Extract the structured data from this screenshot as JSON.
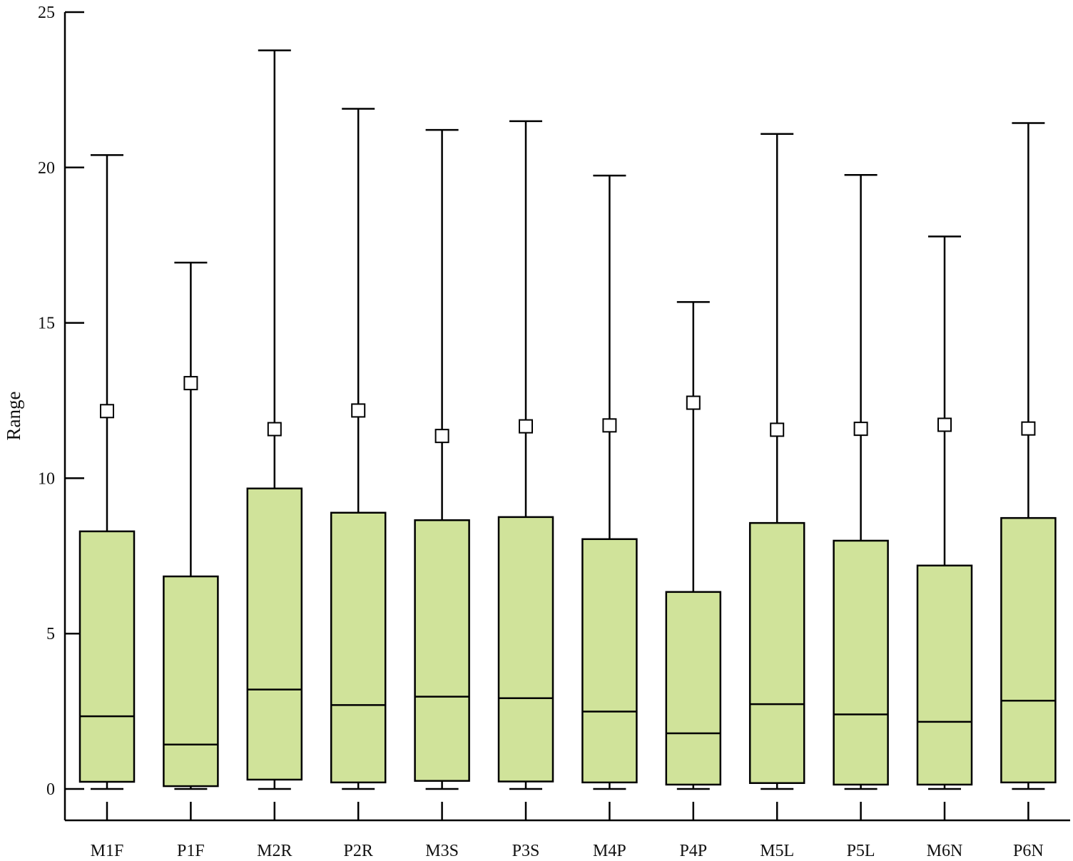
{
  "chart_data": {
    "type": "boxplot",
    "ylabel": "Range",
    "xlabel": "",
    "ylim": [
      0,
      25
    ],
    "yticks": [
      0,
      5,
      10,
      15,
      20,
      25
    ],
    "ytick_labels": [
      "0",
      "5",
      "10",
      "15",
      "20",
      "25"
    ],
    "grid": false,
    "legend": "none",
    "box_color": "#d0e39a",
    "line_color": "#000000",
    "categories": [
      "M1F",
      "P1F",
      "M2R",
      "P2R",
      "M3S",
      "P3S",
      "M4P",
      "P4P",
      "M5L",
      "P5L",
      "M6N",
      "P6N"
    ],
    "boxes": [
      {
        "label": "M1F",
        "min": 0.0,
        "q1": 0.23,
        "median": 2.34,
        "q3": 8.29,
        "max": 20.4,
        "mean": 12.16
      },
      {
        "label": "P1F",
        "min": 0.0,
        "q1": 0.09,
        "median": 1.43,
        "q3": 6.84,
        "max": 16.94,
        "mean": 13.06
      },
      {
        "label": "M2R",
        "min": 0.0,
        "q1": 0.3,
        "median": 3.2,
        "q3": 9.67,
        "max": 23.77,
        "mean": 11.58
      },
      {
        "label": "P2R",
        "min": 0.0,
        "q1": 0.21,
        "median": 2.7,
        "q3": 8.89,
        "max": 21.89,
        "mean": 12.18
      },
      {
        "label": "M3S",
        "min": 0.0,
        "q1": 0.26,
        "median": 2.97,
        "q3": 8.65,
        "max": 21.21,
        "mean": 11.36
      },
      {
        "label": "P3S",
        "min": 0.0,
        "q1": 0.24,
        "median": 2.92,
        "q3": 8.75,
        "max": 21.49,
        "mean": 11.67
      },
      {
        "label": "M4P",
        "min": 0.0,
        "q1": 0.21,
        "median": 2.49,
        "q3": 8.04,
        "max": 19.74,
        "mean": 11.7
      },
      {
        "label": "P4P",
        "min": 0.0,
        "q1": 0.14,
        "median": 1.79,
        "q3": 6.34,
        "max": 15.67,
        "mean": 12.43
      },
      {
        "label": "M5L",
        "min": 0.0,
        "q1": 0.19,
        "median": 2.73,
        "q3": 8.56,
        "max": 21.08,
        "mean": 11.56
      },
      {
        "label": "P5L",
        "min": 0.0,
        "q1": 0.14,
        "median": 2.4,
        "q3": 7.99,
        "max": 19.76,
        "mean": 11.59
      },
      {
        "label": "M6N",
        "min": 0.0,
        "q1": 0.14,
        "median": 2.16,
        "q3": 7.19,
        "max": 17.78,
        "mean": 11.72
      },
      {
        "label": "P6N",
        "min": 0.0,
        "q1": 0.21,
        "median": 2.84,
        "q3": 8.72,
        "max": 21.43,
        "mean": 11.6
      }
    ]
  }
}
